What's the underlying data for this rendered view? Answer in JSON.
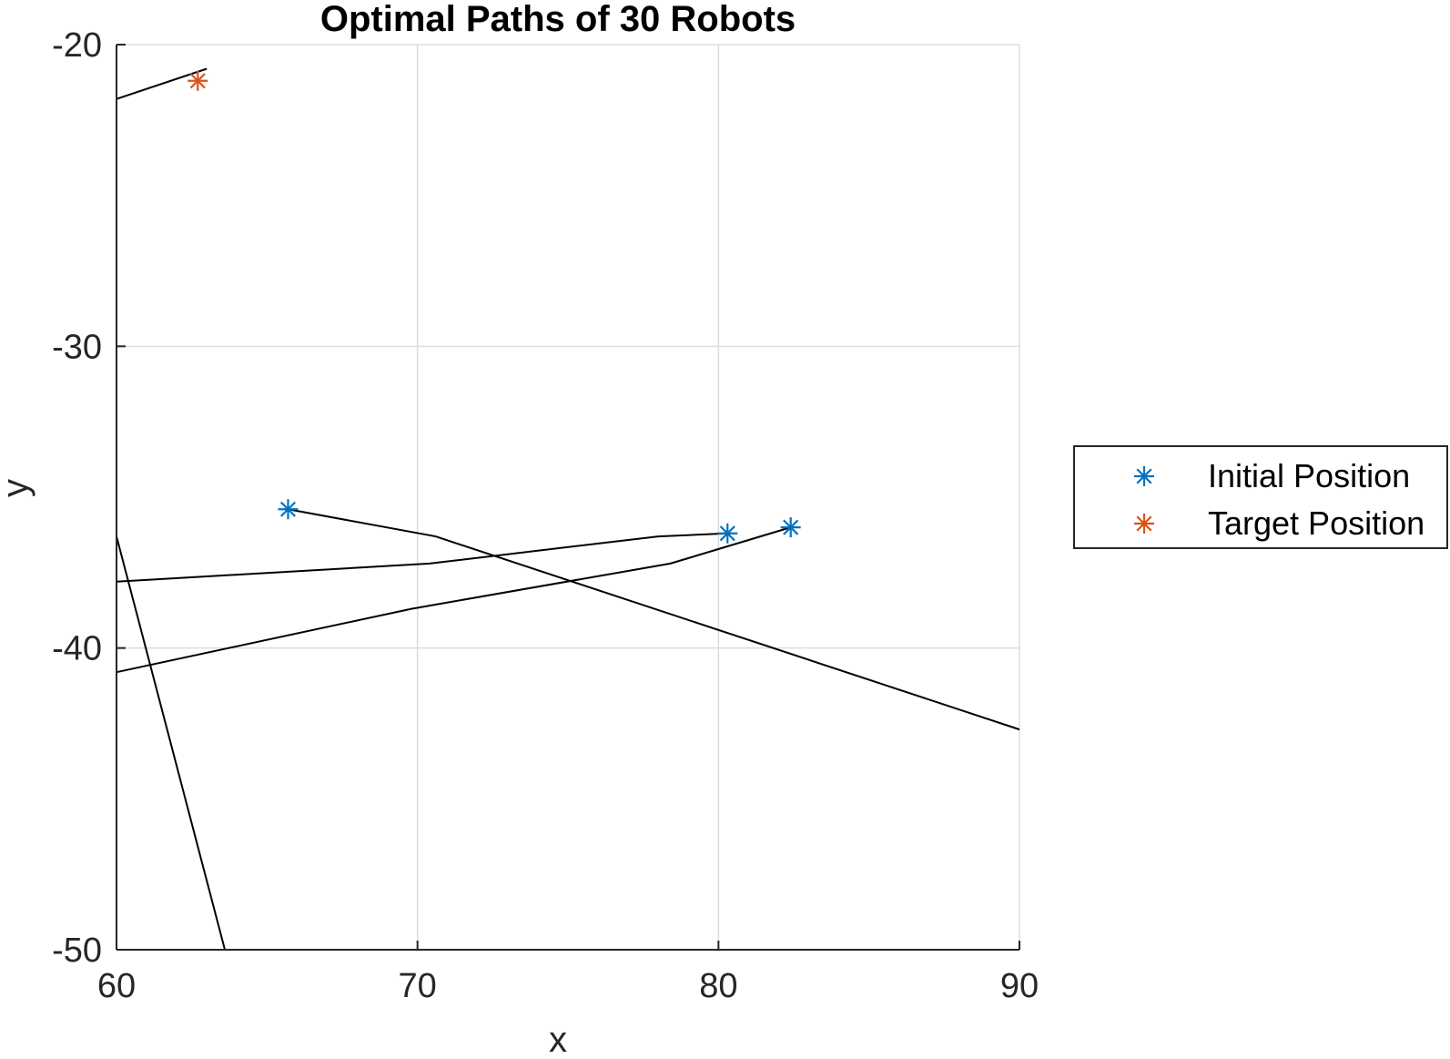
{
  "chart_data": {
    "type": "line",
    "title": "Optimal Paths of 30 Robots",
    "xlabel": "x",
    "ylabel": "y",
    "xlim": [
      60,
      90
    ],
    "ylim": [
      -50,
      -20
    ],
    "xticks": [
      60,
      70,
      80,
      90
    ],
    "yticks": [
      -50,
      -40,
      -30,
      -20
    ],
    "xtick_labels": [
      "60",
      "70",
      "80",
      "90"
    ],
    "ytick_labels": [
      "-50",
      "-40",
      "-30",
      "-20"
    ],
    "grid": true,
    "legend_position": "outside-right",
    "colors": {
      "path": "#000000",
      "initial": "#0072BD",
      "target": "#D95319",
      "grid": "#dddddd",
      "axis": "#262626"
    },
    "paths": [
      {
        "x": [
          60,
          63
        ],
        "y": [
          -21.8,
          -20.8
        ]
      },
      {
        "x": [
          65.7,
          70.6,
          90
        ],
        "y": [
          -35.4,
          -36.3,
          -42.7
        ]
      },
      {
        "x": [
          60,
          70.4,
          78,
          80.3
        ],
        "y": [
          -37.8,
          -37.2,
          -36.3,
          -36.2
        ]
      },
      {
        "x": [
          60,
          69.8,
          78.4,
          82.4
        ],
        "y": [
          -40.8,
          -38.7,
          -37.2,
          -36.0
        ]
      },
      {
        "x": [
          60,
          63.6
        ],
        "y": [
          -36.3,
          -50.0
        ]
      }
    ],
    "series": [
      {
        "name": "Initial Position",
        "marker": "asterisk",
        "x": [
          65.7,
          80.3,
          82.4
        ],
        "y": [
          -35.4,
          -36.2,
          -36.0
        ]
      },
      {
        "name": "Target Position",
        "marker": "asterisk",
        "x": [
          62.7
        ],
        "y": [
          -21.2
        ]
      }
    ]
  }
}
